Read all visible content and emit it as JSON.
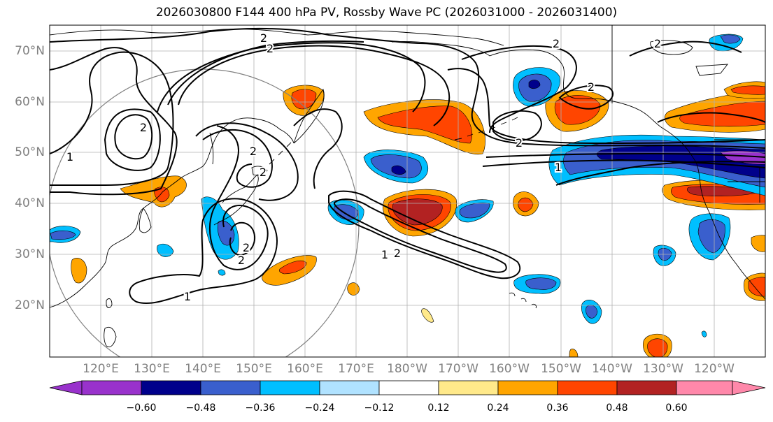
{
  "title": "2026030800 F144 400 hPa PV, Rossby Wave PC (2026031000 - 2026031400)",
  "map": {
    "projection": "PlateCarree",
    "lon_range": [
      110,
      250
    ],
    "lat_range": [
      10,
      75
    ],
    "lat_labels": [
      "70°N",
      "60°N",
      "50°N",
      "40°N",
      "30°N",
      "20°N"
    ],
    "lon_labels": [
      "120°E",
      "130°E",
      "140°E",
      "150°E",
      "160°E",
      "170°E",
      "180°W",
      "170°W",
      "160°W",
      "150°W",
      "140°W",
      "130°W",
      "120°W"
    ],
    "contour_labels": [
      "2",
      "2",
      "2",
      "2",
      "2",
      "2",
      "2",
      "1",
      "2",
      "2",
      "2",
      "1",
      "2",
      "1",
      "1",
      "2"
    ],
    "circle_color": "#808080",
    "contour_color": "#000000",
    "coastline_color": "#000000"
  },
  "colorbar": {
    "ticks": [
      "−0.60",
      "−0.48",
      "−0.36",
      "−0.24",
      "−0.12",
      "0.12",
      "0.24",
      "0.36",
      "0.48",
      "0.60"
    ],
    "levels": [
      -0.6,
      -0.48,
      -0.36,
      -0.24,
      -0.12,
      0.12,
      0.24,
      0.36,
      0.48,
      0.6
    ],
    "colors": [
      "#9932cc",
      "#00008b",
      "#3a5fcd",
      "#00bfff",
      "#b0e2ff",
      "#ffffff",
      "#ffe98a",
      "#ffa500",
      "#ff4500",
      "#b22222",
      "#ff88aa"
    ]
  }
}
